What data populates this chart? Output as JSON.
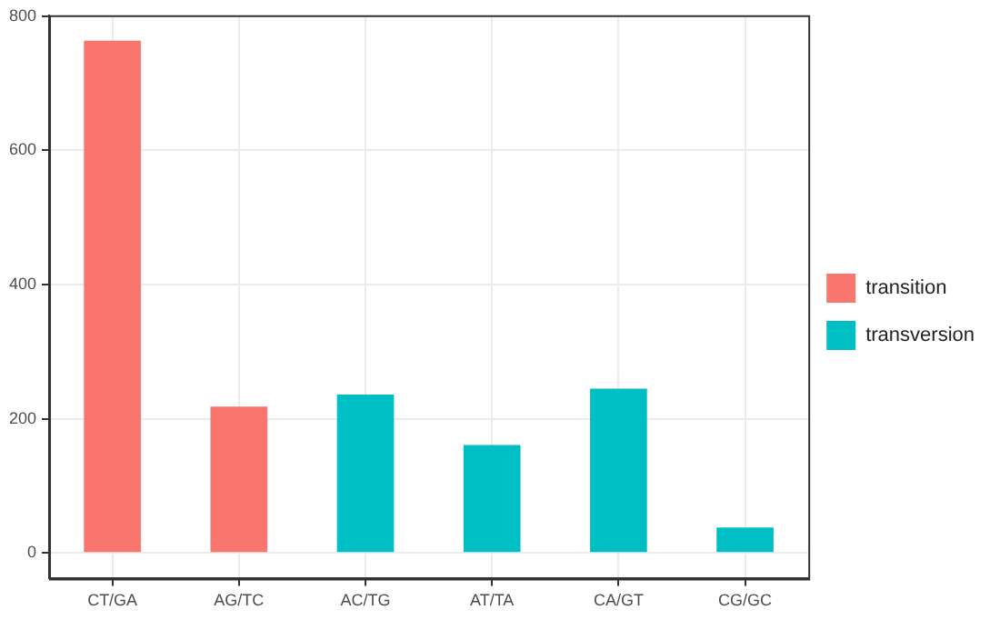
{
  "chart_data": {
    "type": "bar",
    "stacked": true,
    "categories": [
      "CT/GA",
      "AG/TC",
      "AC/TG",
      "AT/TA",
      "CA/GT",
      "CG/GC"
    ],
    "series": [
      {
        "name": "transition",
        "color": "#f8766d",
        "values": [
          763,
          218,
          null,
          null,
          null,
          null
        ]
      },
      {
        "name": "transversion",
        "color": "#00bfc4",
        "values": [
          null,
          null,
          236,
          161,
          245,
          38
        ]
      }
    ],
    "ylim": [
      -38,
      801
    ],
    "yticks": [
      0,
      200,
      400,
      600,
      800
    ],
    "grid": true,
    "legend": "right"
  }
}
